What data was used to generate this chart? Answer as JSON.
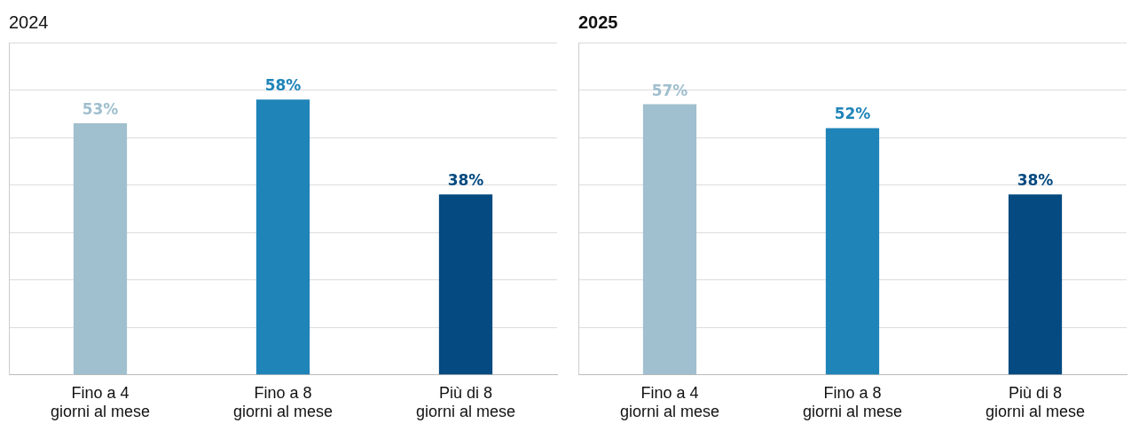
{
  "chart_data": [
    {
      "type": "bar",
      "title": "2024",
      "categories": [
        "Fino a 4 giorni al mese",
        "Fino a 8 giorni al mese",
        "Più di 8 giorni al mese"
      ],
      "values": [
        53,
        58,
        38
      ],
      "value_labels": [
        "53%",
        "58%",
        "38%"
      ],
      "colors": [
        "#a0bfcf",
        "#1f84b8",
        "#054a80"
      ],
      "tick_labels": "x",
      "grid": "y",
      "legend": false
    },
    {
      "type": "bar",
      "title": "2025",
      "categories": [
        "Fino a 4 giorni al mese",
        "Fino a 8 giorni al mese",
        "Più di 8 giorni al mese"
      ],
      "values": [
        57,
        52,
        38
      ],
      "value_labels": [
        "57%",
        "52%",
        "38%"
      ],
      "colors": [
        "#a0bfcf",
        "#1f84b8",
        "#054a80"
      ],
      "tick_labels": "x",
      "grid": "y",
      "legend": false
    }
  ]
}
